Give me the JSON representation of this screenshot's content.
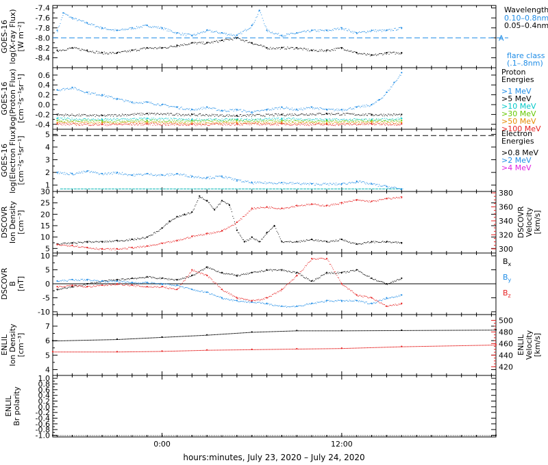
{
  "xaxis": {
    "label": "hours:minutes, July 23, 2020 – July 24, 2020",
    "ticks": [
      {
        "t": 0,
        "label": "0:00"
      },
      {
        "t": 12,
        "label": "12:00"
      }
    ],
    "range": [
      -7.3,
      22.3
    ],
    "data_end": 16.1
  },
  "chart_data": [
    {
      "type": "scatter",
      "panel": "xray",
      "ylabel_lines": [
        "GOES-16",
        "log(X-ray Flux)",
        "[W m⁻²]"
      ],
      "ylim": [
        -8.6,
        -7.35
      ],
      "yticks": [
        "-7.4",
        "-7.6",
        "-7.8",
        "-8.0",
        "-8.2",
        "-8.4"
      ],
      "yvals": [
        -7.4,
        -7.6,
        -7.8,
        -8.0,
        -8.2,
        -8.4
      ],
      "legend_title": "Wavelength",
      "series": [
        {
          "name": "0.10–0.8nm",
          "color": "#1e8ce6",
          "x": [
            -7,
            -6.6,
            -6,
            -5,
            -4,
            -3,
            -2,
            -1,
            0,
            1,
            2,
            3,
            4,
            5,
            6,
            6.5,
            7,
            8,
            9,
            10,
            11,
            12,
            13,
            14,
            15,
            16
          ],
          "y": [
            -7.85,
            -7.5,
            -7.6,
            -7.7,
            -7.8,
            -7.85,
            -7.8,
            -7.75,
            -7.8,
            -7.9,
            -7.95,
            -7.85,
            -7.9,
            -7.95,
            -7.75,
            -7.45,
            -7.85,
            -7.95,
            -7.9,
            -7.85,
            -7.85,
            -7.8,
            -7.9,
            -7.85,
            -7.85,
            -7.8
          ]
        },
        {
          "name": "0.05–0.4nm",
          "color": "#000000",
          "x": [
            -7,
            -6,
            -5,
            -4,
            -3,
            -2,
            -1,
            0,
            1,
            2,
            3,
            4,
            5,
            6,
            7,
            8,
            9,
            10,
            11,
            12,
            13,
            14,
            15,
            16
          ],
          "y": [
            -8.25,
            -8.2,
            -8.25,
            -8.3,
            -8.3,
            -8.25,
            -8.2,
            -8.2,
            -8.15,
            -8.1,
            -8.1,
            -8.05,
            -8.0,
            -8.1,
            -8.2,
            -8.2,
            -8.2,
            -8.25,
            -8.25,
            -8.2,
            -8.3,
            -8.35,
            -8.3,
            -8.3
          ]
        }
      ],
      "flare_line": {
        "y": -8.0,
        "label": "A",
        "color": "#1e8ce6"
      },
      "flare_note_lines": [
        "flare class",
        "(.1–.8nm)"
      ]
    },
    {
      "type": "scatter",
      "panel": "proton",
      "ylabel_lines": [
        "GOES-16",
        "log(Proton Flux)",
        "[cm⁻²s⁻¹sr⁻¹]"
      ],
      "ylim": [
        -0.5,
        0.75
      ],
      "yticks": [
        "0.6",
        "0.4",
        "0.2",
        "0.0",
        "-0.2",
        "-0.4"
      ],
      "yvals": [
        0.6,
        0.4,
        0.2,
        0.0,
        -0.2,
        -0.4
      ],
      "legend_title_lines": [
        "Proton",
        "Energies"
      ],
      "series": [
        {
          "name": ">1 MeV",
          "color": "#1e8ce6",
          "x": [
            -7,
            -6,
            -5,
            -4,
            -3,
            -2,
            -1,
            0,
            1,
            2,
            3,
            4,
            5,
            6,
            7,
            8,
            9,
            10,
            11,
            12,
            13,
            14,
            14.5,
            15,
            15.5,
            16
          ],
          "y": [
            0.3,
            0.35,
            0.25,
            0.2,
            0.12,
            0.05,
            0.05,
            0.0,
            -0.05,
            -0.1,
            -0.05,
            -0.12,
            -0.1,
            -0.15,
            -0.1,
            -0.05,
            -0.1,
            -0.05,
            -0.1,
            -0.1,
            -0.05,
            0.0,
            0.1,
            0.25,
            0.45,
            0.65
          ]
        },
        {
          "name": ">5 MeV",
          "color": "#000000",
          "x": [
            -7,
            -4,
            -1,
            2,
            5,
            8,
            11,
            14,
            16
          ],
          "y": [
            -0.2,
            -0.22,
            -0.18,
            -0.2,
            -0.22,
            -0.2,
            -0.18,
            -0.2,
            -0.2
          ]
        },
        {
          "name": ">10 MeV",
          "color": "#00c8c8",
          "x": [
            -7,
            -4,
            -1,
            2,
            5,
            8,
            11,
            14,
            16
          ],
          "y": [
            -0.28,
            -0.3,
            -0.28,
            -0.3,
            -0.3,
            -0.28,
            -0.3,
            -0.3,
            -0.28
          ]
        },
        {
          "name": ">30 MeV",
          "color": "#64c800",
          "x": [
            -7,
            -4,
            -1,
            2,
            5,
            8,
            11,
            14,
            16
          ],
          "y": [
            -0.32,
            -0.33,
            -0.32,
            -0.33,
            -0.32,
            -0.32,
            -0.33,
            -0.32,
            -0.32
          ]
        },
        {
          "name": ">50 MeV",
          "color": "#e68c00",
          "x": [
            -7,
            -4,
            -1,
            2,
            5,
            8,
            11,
            14,
            16
          ],
          "y": [
            -0.36,
            -0.37,
            -0.36,
            -0.37,
            -0.36,
            -0.36,
            -0.37,
            -0.36,
            -0.36
          ]
        },
        {
          "name": ">100 MeV",
          "color": "#e62020",
          "x": [
            -7,
            -4,
            -1,
            2,
            5,
            8,
            11,
            14,
            16
          ],
          "y": [
            -0.39,
            -0.4,
            -0.39,
            -0.4,
            -0.39,
            -0.39,
            -0.4,
            -0.39,
            -0.39
          ]
        }
      ]
    },
    {
      "type": "scatter",
      "panel": "electron",
      "ylabel_lines": [
        "GOES-16",
        "log(Electron Flux)",
        "[cm⁻²s⁻¹sr⁻¹]"
      ],
      "ylim": [
        0.5,
        5.4
      ],
      "yticks": [
        "5",
        "4",
        "3",
        "2",
        "1"
      ],
      "yvals": [
        5,
        4,
        3,
        2,
        1
      ],
      "threshold_y": 4.9,
      "legend_title_lines": [
        "Electron",
        "Energies"
      ],
      "series": [
        {
          "name": ">0.8 MeV",
          "color": "#000000",
          "x": [],
          "y": []
        },
        {
          "name": ">2 MeV",
          "color": "#1e8ce6",
          "x": [
            -7,
            -6,
            -5,
            -4,
            -3,
            -2,
            -1,
            0,
            1,
            2,
            3,
            4,
            5,
            6,
            8,
            10,
            12,
            13,
            14,
            15,
            16
          ],
          "y": [
            2.0,
            1.9,
            2.1,
            1.9,
            2.0,
            1.8,
            1.9,
            1.8,
            1.9,
            1.7,
            1.6,
            1.7,
            1.4,
            1.2,
            1.2,
            1.1,
            1.1,
            1.3,
            1.1,
            0.9,
            0.7
          ]
        },
        {
          "name": ">4 MeV",
          "color": "#e020e0",
          "x": [],
          "y": []
        }
      ],
      "baseline": {
        "y": 0.7,
        "color": "#00b4b4"
      }
    },
    {
      "type": "line",
      "panel": "dscovr_plasma",
      "ylabel_lines": [
        "DSCOVR",
        "Ion Density",
        "[cm⁻³]"
      ],
      "ylim": [
        3,
        30
      ],
      "yticks": [
        "30",
        "25",
        "20",
        "15",
        "10",
        "5"
      ],
      "yvals": [
        30,
        25,
        20,
        15,
        10,
        5
      ],
      "y2label_lines": [
        "DSCOVR",
        "Velocity",
        "[km/s]"
      ],
      "y2lim": [
        294,
        382
      ],
      "y2ticks": [
        "380",
        "360",
        "340",
        "320",
        "300"
      ],
      "y2vals": [
        380,
        360,
        340,
        320,
        300
      ],
      "series": [
        {
          "name": "Ion Density",
          "color": "#000000",
          "x": [
            -7,
            -6,
            -5,
            -4,
            -3,
            -2,
            -1,
            0,
            0.5,
            1,
            1.5,
            2,
            2.5,
            3,
            3.5,
            4,
            4.5,
            5,
            5.5,
            6,
            6.5,
            7,
            7.5,
            8,
            9,
            10,
            11,
            12,
            13,
            14,
            15,
            16
          ],
          "y": [
            7,
            7.5,
            8,
            8,
            8.5,
            9,
            10,
            14,
            17,
            19,
            20,
            21,
            28,
            26,
            22,
            26,
            24,
            13,
            8,
            10,
            8,
            12,
            15,
            8,
            8,
            9,
            8,
            9,
            7,
            8,
            8,
            7.5
          ]
        },
        {
          "name": "Velocity",
          "color": "#e62020",
          "axis": "right",
          "x": [
            -7,
            -6,
            -5,
            -4,
            -3,
            -2,
            -1,
            0,
            1,
            2,
            3,
            4,
            5,
            6,
            7,
            8,
            9,
            10,
            11,
            12,
            13,
            14,
            15,
            16
          ],
          "y": [
            306,
            305,
            302,
            300,
            300,
            302,
            304,
            308,
            312,
            318,
            322,
            326,
            338,
            358,
            360,
            358,
            362,
            364,
            362,
            366,
            370,
            368,
            372,
            374
          ]
        }
      ]
    },
    {
      "type": "line",
      "panel": "dscovr_mag",
      "ylabel_lines": [
        "DSCOVR",
        "B",
        "[nT]"
      ],
      "ylim": [
        -11,
        11
      ],
      "yticks": [
        "10",
        "5",
        "0",
        "-5",
        "-10"
      ],
      "yvals": [
        10,
        5,
        0,
        -5,
        -10
      ],
      "zero_line": true,
      "series": [
        {
          "name": "Bx",
          "color": "#000000",
          "x": [
            -7,
            -6,
            -5,
            -4,
            -3,
            -2,
            -1,
            0,
            1,
            2,
            3,
            4,
            5,
            6,
            7,
            8,
            9,
            10,
            11,
            12,
            13,
            14,
            15,
            16
          ],
          "y": [
            -2,
            -1,
            0,
            1,
            1.5,
            2,
            2.5,
            2,
            1.5,
            3,
            6,
            4,
            3,
            4,
            5,
            5,
            4,
            1,
            4,
            4,
            5,
            2,
            0,
            2
          ]
        },
        {
          "name": "By",
          "color": "#1e8ce6",
          "x": [
            -7,
            -6,
            -5,
            -4,
            -3,
            -2,
            -1,
            0,
            1,
            2,
            3,
            4,
            5,
            6,
            7,
            8,
            9,
            10,
            11,
            12,
            13,
            14,
            15,
            16
          ],
          "y": [
            1,
            1.5,
            1.5,
            1,
            1,
            0.5,
            0.5,
            0,
            -0.5,
            -2,
            -3,
            -5,
            -6,
            -6.5,
            -7,
            -8,
            -8,
            -7,
            -6,
            -6,
            -6,
            -7,
            -5,
            -4
          ]
        },
        {
          "name": "Bz",
          "color": "#e62020",
          "x": [
            -7,
            -6,
            -5,
            -4,
            -3,
            -2,
            -1,
            0,
            1,
            2,
            3,
            4,
            5,
            6,
            7,
            8,
            9,
            10,
            11,
            12,
            13,
            14,
            15,
            16
          ],
          "y": [
            -1,
            -0.5,
            -1,
            -0.5,
            0,
            -0.5,
            -1,
            -1,
            -2,
            5,
            3,
            -2,
            -5,
            -6,
            -5,
            -2,
            3,
            9,
            9,
            0,
            -4,
            -5,
            -8,
            -7
          ]
        }
      ]
    },
    {
      "type": "line",
      "panel": "enlil_plasma",
      "ylabel_lines": [
        "ENLIL",
        "Ion Density",
        "[cm⁻³]"
      ],
      "ylim": [
        3.6,
        7.8
      ],
      "yticks": [
        "7",
        "6",
        "5",
        "4"
      ],
      "yvals": [
        7,
        6,
        5,
        4
      ],
      "y2label_lines": [
        "ENLIL",
        "Velocity",
        "[km/s]"
      ],
      "y2lim": [
        405,
        510
      ],
      "y2ticks": [
        "500",
        "480",
        "460",
        "440",
        "420"
      ],
      "y2vals": [
        500,
        480,
        460,
        440,
        420
      ],
      "series": [
        {
          "name": "Ion Density",
          "color": "#000000",
          "x": [
            -7.3,
            -3,
            0,
            3,
            6,
            9,
            12,
            16,
            22.3
          ],
          "y": [
            6.0,
            6.1,
            6.25,
            6.4,
            6.6,
            6.7,
            6.7,
            6.72,
            6.75
          ]
        },
        {
          "name": "Velocity",
          "color": "#e62020",
          "axis": "right",
          "x": [
            -7.3,
            -3,
            0,
            3,
            6,
            9,
            12,
            16,
            22.3
          ],
          "y": [
            446,
            446,
            447,
            449,
            450,
            451,
            452,
            455,
            458
          ]
        }
      ]
    },
    {
      "type": "line",
      "panel": "enlil_polarity",
      "ylabel_lines": [
        "ENLIL",
        "Br polarity"
      ],
      "ylim": [
        -1.06,
        1.1
      ],
      "yticks": [
        "1.0",
        "0.8",
        "0.6",
        "0.4",
        "0.2",
        "0.0",
        "-0.2",
        "-0.4",
        "-0.6",
        "-0.8",
        "-1.0"
      ],
      "yvals": [
        1.0,
        0.8,
        0.6,
        0.4,
        0.2,
        0.0,
        -0.2,
        -0.4,
        -0.6,
        -0.8,
        -1.0
      ],
      "series": [
        {
          "name": "Br polarity",
          "color": "#000000",
          "x": [
            -7.3,
            22.3
          ],
          "y": [
            -1.0,
            -1.0
          ]
        }
      ]
    }
  ]
}
